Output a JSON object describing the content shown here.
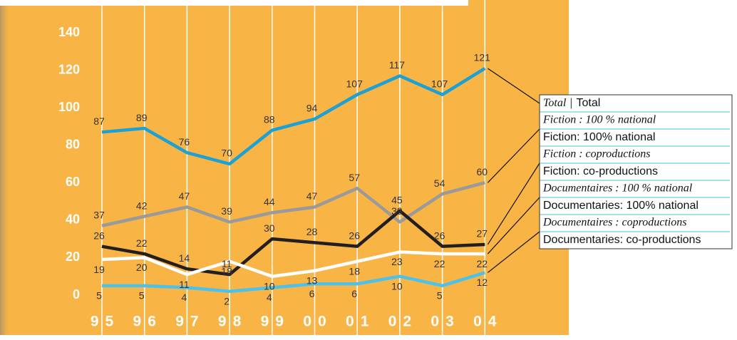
{
  "chart_data": {
    "type": "line",
    "categories": [
      "95",
      "96",
      "97",
      "98",
      "99",
      "00",
      "01",
      "02",
      "03",
      "04"
    ],
    "ylim": [
      0,
      140
    ],
    "yticks": [
      0,
      20,
      40,
      60,
      80,
      100,
      120,
      140
    ],
    "legend_separator": "|",
    "series": [
      {
        "name": "Total",
        "name_en": "Total",
        "color": "#1ba1d5",
        "values": [
          87,
          89,
          76,
          70,
          88,
          94,
          107,
          117,
          107,
          121
        ]
      },
      {
        "name": "Fiction : 100 % national",
        "name_en": "Fiction: 100% national",
        "color": "#9a9a9a",
        "values": [
          37,
          42,
          47,
          39,
          44,
          47,
          57,
          39,
          54,
          60
        ]
      },
      {
        "name": "Fiction : coproductions",
        "name_en": "Fiction: co-productions",
        "color": "#231f20",
        "values": [
          26,
          22,
          14,
          11,
          30,
          28,
          26,
          45,
          26,
          27
        ]
      },
      {
        "name": "Documentaires : 100 % national",
        "name_en": "Documentaries: 100% national",
        "color": "#ffffff",
        "values": [
          19,
          20,
          11,
          18,
          10,
          13,
          18,
          23,
          22,
          22
        ]
      },
      {
        "name": "Documentaires : coproductions",
        "name_en": "Documentaries: co-productions",
        "color": "#4cc2ea",
        "values": [
          5,
          5,
          4,
          2,
          4,
          6,
          6,
          10,
          5,
          12
        ]
      }
    ]
  }
}
